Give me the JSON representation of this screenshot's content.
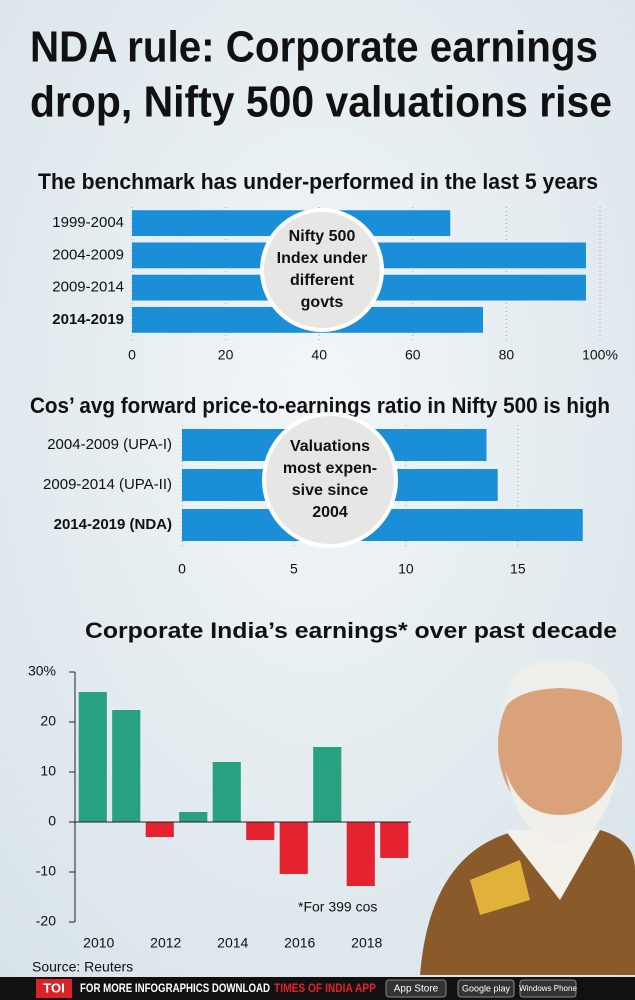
{
  "title": [
    "NDA rule: Corporate earnings",
    "drop, Nifty 500 valuations rise"
  ],
  "chart_data": [
    {
      "type": "hbar",
      "title": "The benchmark has under-performed in the last 5 years",
      "categories": [
        "1999-2004",
        "2004-2009",
        "2009-2014",
        "2014-2019"
      ],
      "values": [
        68,
        97,
        97,
        75
      ],
      "color": "#1a8fd8",
      "xlim": [
        0,
        100
      ],
      "xticks": [
        0,
        20,
        40,
        60,
        80,
        {
          "value": 100,
          "label": "100%"
        }
      ],
      "grid": true,
      "annotation": [
        "Nifty 500",
        "Index under",
        "different",
        "govts"
      ]
    },
    {
      "type": "hbar",
      "title": "Cos’ avg forward price-to-earnings ratio in Nifty 500 is high",
      "categories": [
        "2004-2009 (UPA-I)",
        "2009-2014 (UPA-II)",
        "2014-2019 (NDA)"
      ],
      "values": [
        13.6,
        14.1,
        17.9
      ],
      "color": "#1a8fd8",
      "xlim": [
        0,
        18
      ],
      "xticks": [
        0,
        5,
        10,
        15
      ],
      "grid": true,
      "annotation": [
        "Valuations",
        "most expen-",
        "sive since",
        "2004"
      ]
    },
    {
      "type": "bar",
      "title": "Corporate India’s earnings* over past decade",
      "categories": [
        "2010",
        null,
        "2012",
        null,
        "2014",
        null,
        "2016",
        null,
        "2018",
        null
      ],
      "values": [
        26,
        22.4,
        -3,
        2,
        12,
        -3.6,
        -10.4,
        15,
        -12.8,
        -7.2
      ],
      "positive_color": "#27a17f",
      "negative_color": "#e5222f",
      "ylim": [
        -20,
        30
      ],
      "yticks": [
        {
          "value": 30,
          "label": "30%"
        },
        20,
        10,
        0,
        -10,
        -20
      ],
      "note": "*For 399 cos"
    }
  ],
  "source": "Source: Reuters",
  "footer": {
    "logo": "TOI",
    "text": "FOR MORE  INFOGRAPHICS DOWNLOAD",
    "app": "TIMES OF INDIA  APP",
    "badges": [
      "App Store",
      "Google play",
      "Windows Phone"
    ]
  }
}
